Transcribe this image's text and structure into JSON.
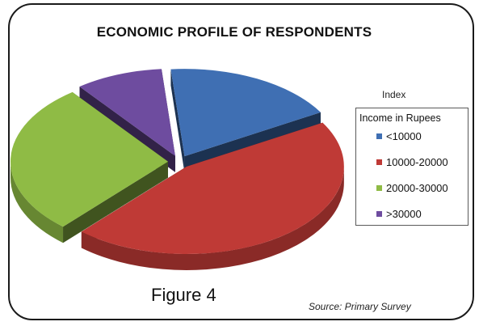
{
  "chart_data": {
    "type": "pie",
    "title": "ECONOMIC PROFILE OF RESPONDENTS",
    "legend_title": "Index",
    "legend_subtitle": "Income in Rupees",
    "legend_placement": "right",
    "exploded": true,
    "style": "3d",
    "categories": [
      "<10000",
      "10000-20000",
      "20000-30000",
      ">30000"
    ],
    "values": [
      18,
      45,
      28,
      9
    ],
    "colors": [
      "#3f6fb3",
      "#bf3a36",
      "#8fbb45",
      "#6e4c9f"
    ]
  },
  "caption": "Figure 4",
  "source": "Source: Primary Survey"
}
